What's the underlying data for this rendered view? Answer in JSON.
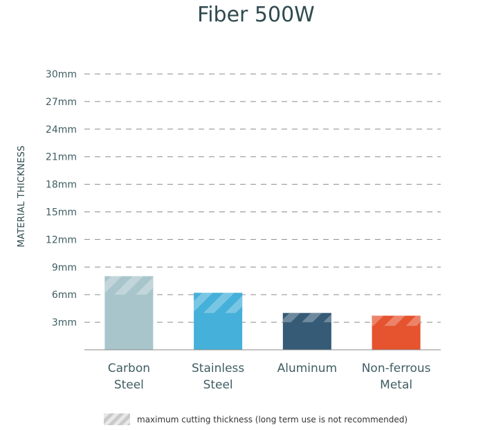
{
  "chart_data": {
    "type": "bar",
    "title": "Fiber 500W",
    "ylabel": "MATERIAL THICKNESS",
    "xlabel": "",
    "ylim": [
      0,
      30
    ],
    "yticks": [
      3,
      6,
      9,
      12,
      15,
      18,
      21,
      24,
      27,
      30
    ],
    "ytick_labels": [
      "3mm",
      "6mm",
      "9mm",
      "12mm",
      "15mm",
      "18mm",
      "21mm",
      "24mm",
      "27mm",
      "30mm"
    ],
    "grid": true,
    "categories": [
      {
        "line1": "Carbon",
        "line2": "Steel"
      },
      {
        "line1": "Stainless",
        "line2": "Steel"
      },
      {
        "line1": "Aluminum",
        "line2": ""
      },
      {
        "line1": "Non-ferrous",
        "line2": "Metal"
      }
    ],
    "values": [
      6,
      4,
      3,
      2.6
    ],
    "max_values": [
      8,
      6.2,
      4,
      3.7
    ],
    "colors": [
      "#a9c5cc",
      "#45b0d9",
      "#365b77",
      "#e5532f"
    ],
    "legend": {
      "label": "maximum cutting thickness (long term use is not recommended)",
      "placement": "bottom"
    }
  }
}
